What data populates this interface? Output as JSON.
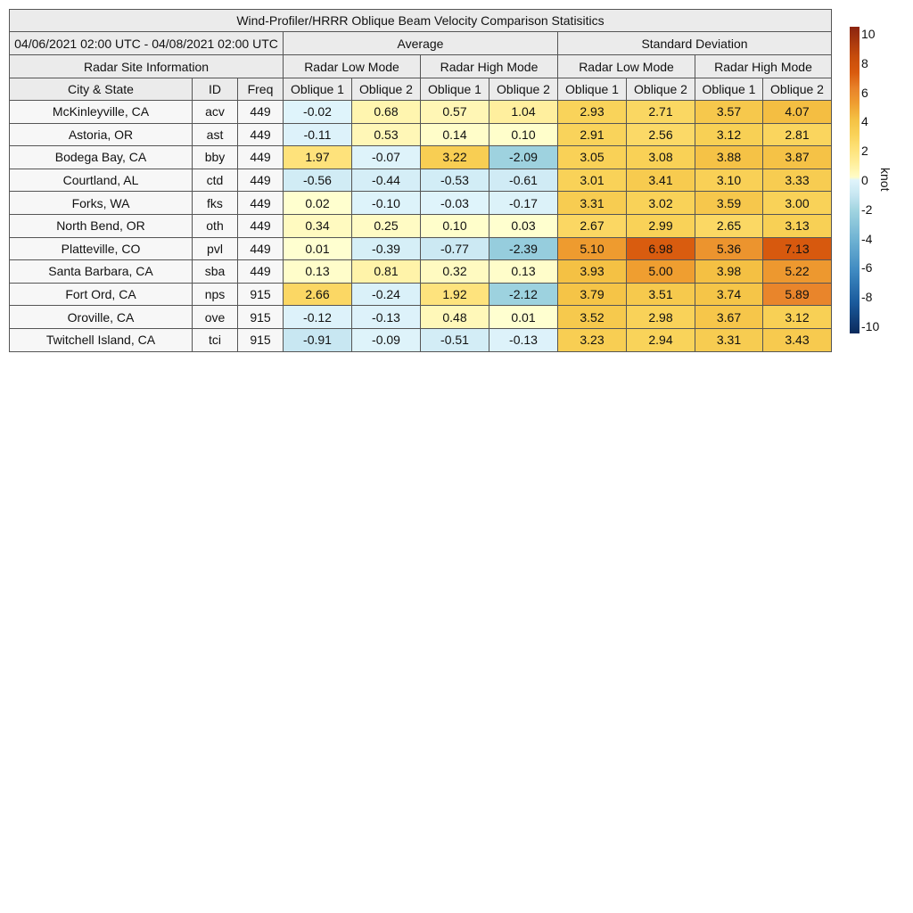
{
  "chart_data": {
    "type": "table",
    "title": "Wind-Profiler/HRRR Oblique Beam Velocity Comparison Statisitics",
    "date_range": "04/06/2021 02:00 UTC - 04/08/2021 02:00 UTC",
    "groups": [
      "Average",
      "Standard Deviation"
    ],
    "site_info_label": "Radar Site Information",
    "modes": [
      "Radar Low Mode",
      "Radar High Mode",
      "Radar Low Mode",
      "Radar High Mode"
    ],
    "columns": [
      "City & State",
      "ID",
      "Freq",
      "Oblique 1",
      "Oblique 2",
      "Oblique 1",
      "Oblique 2",
      "Oblique 1",
      "Oblique 2",
      "Oblique 1",
      "Oblique 2"
    ],
    "rows": [
      {
        "city": "McKinleyville, CA",
        "id": "acv",
        "freq": "449",
        "values": [
          "-0.02",
          "0.68",
          "0.57",
          "1.04",
          "2.93",
          "2.71",
          "3.57",
          "4.07"
        ]
      },
      {
        "city": "Astoria, OR",
        "id": "ast",
        "freq": "449",
        "values": [
          "-0.11",
          "0.53",
          "0.14",
          "0.10",
          "2.91",
          "2.56",
          "3.12",
          "2.81"
        ]
      },
      {
        "city": "Bodega Bay, CA",
        "id": "bby",
        "freq": "449",
        "values": [
          "1.97",
          "-0.07",
          "3.22",
          "-2.09",
          "3.05",
          "3.08",
          "3.88",
          "3.87"
        ]
      },
      {
        "city": "Courtland, AL",
        "id": "ctd",
        "freq": "449",
        "values": [
          "-0.56",
          "-0.44",
          "-0.53",
          "-0.61",
          "3.01",
          "3.41",
          "3.10",
          "3.33"
        ]
      },
      {
        "city": "Forks, WA",
        "id": "fks",
        "freq": "449",
        "values": [
          "0.02",
          "-0.10",
          "-0.03",
          "-0.17",
          "3.31",
          "3.02",
          "3.59",
          "3.00"
        ]
      },
      {
        "city": "North Bend, OR",
        "id": "oth",
        "freq": "449",
        "values": [
          "0.34",
          "0.25",
          "0.10",
          "0.03",
          "2.67",
          "2.99",
          "2.65",
          "3.13"
        ]
      },
      {
        "city": "Platteville, CO",
        "id": "pvl",
        "freq": "449",
        "values": [
          "0.01",
          "-0.39",
          "-0.77",
          "-2.39",
          "5.10",
          "6.98",
          "5.36",
          "7.13"
        ]
      },
      {
        "city": "Santa Barbara, CA",
        "id": "sba",
        "freq": "449",
        "values": [
          "0.13",
          "0.81",
          "0.32",
          "0.13",
          "3.93",
          "5.00",
          "3.98",
          "5.22"
        ]
      },
      {
        "city": "Fort Ord, CA",
        "id": "nps",
        "freq": "915",
        "values": [
          "2.66",
          "-0.24",
          "1.92",
          "-2.12",
          "3.79",
          "3.51",
          "3.74",
          "5.89"
        ]
      },
      {
        "city": "Oroville, CA",
        "id": "ove",
        "freq": "915",
        "values": [
          "-0.12",
          "-0.13",
          "0.48",
          "0.01",
          "3.52",
          "2.98",
          "3.67",
          "3.12"
        ]
      },
      {
        "city": "Twitchell Island, CA",
        "id": "tci",
        "freq": "915",
        "values": [
          "-0.91",
          "-0.09",
          "-0.51",
          "-0.13",
          "3.23",
          "2.94",
          "3.31",
          "3.43"
        ]
      }
    ],
    "colorbar": {
      "label": "knot",
      "range": [
        -10,
        10
      ],
      "ticks": [
        10,
        8,
        6,
        4,
        2,
        0,
        -2,
        -4,
        -6,
        -8,
        -10
      ],
      "stops": [
        [
          -10,
          "#0b2a5c"
        ],
        [
          -8,
          "#1a5a9c"
        ],
        [
          -6,
          "#3d88c0"
        ],
        [
          -4,
          "#6cb0d2"
        ],
        [
          -2,
          "#a0d4e0"
        ],
        [
          -1,
          "#c6e6f1"
        ],
        [
          0,
          "#e0f4fb"
        ],
        [
          0.0001,
          "#ffffd0"
        ],
        [
          1,
          "#fff0a0"
        ],
        [
          2,
          "#fee27a"
        ],
        [
          3,
          "#f9d258"
        ],
        [
          4,
          "#f4c043"
        ],
        [
          5,
          "#ef9e30"
        ],
        [
          6,
          "#e8822a"
        ],
        [
          7,
          "#d95b0e"
        ],
        [
          8,
          "#c84d0c"
        ],
        [
          10,
          "#8b2410"
        ]
      ]
    }
  }
}
